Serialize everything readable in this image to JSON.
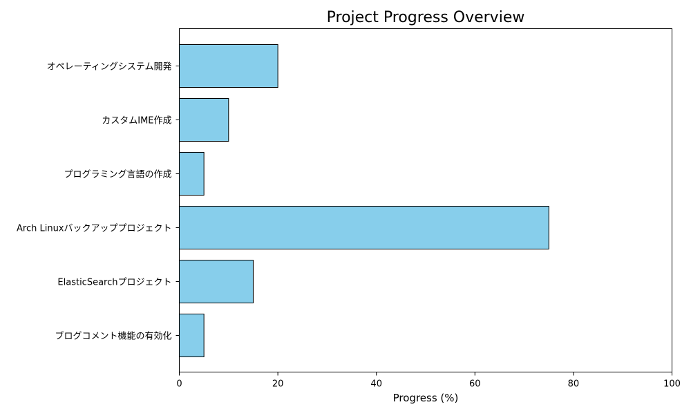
{
  "chart_data": {
    "type": "bar",
    "orientation": "horizontal",
    "title": "Project Progress Overview",
    "xlabel": "Progress (%)",
    "ylabel": "",
    "xlim": [
      0,
      100
    ],
    "xticks": [
      0,
      20,
      40,
      60,
      80,
      100
    ],
    "grid": false,
    "categories": [
      "オペレーティングシステム開発",
      "カスタムIME作成",
      "プログラミング言語の作成",
      "Arch Linuxバックアッププロジェクト",
      "ElasticSearchプロジェクト",
      "ブログコメント機能の有効化"
    ],
    "values": [
      20,
      10,
      5,
      75,
      15,
      5
    ],
    "bar_color": "#87CEEB",
    "edge_color": "#000000"
  }
}
